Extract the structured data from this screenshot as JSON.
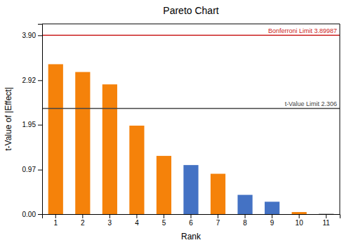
{
  "chart_data": {
    "type": "bar",
    "title": "Pareto Chart",
    "xlabel": "Rank",
    "ylabel": "t-Value of |Effect|",
    "categories": [
      1,
      2,
      3,
      4,
      5,
      6,
      7,
      8,
      9,
      10,
      11
    ],
    "values": [
      3.27,
      3.1,
      2.83,
      1.93,
      1.27,
      1.07,
      0.88,
      0.42,
      0.27,
      0.045,
      0.005
    ],
    "colors": [
      "#F5820A",
      "#F5820A",
      "#F5820A",
      "#F5820A",
      "#F5820A",
      "#4472C4",
      "#F5820A",
      "#4472C4",
      "#4472C4",
      "#F5820A",
      "#333333"
    ],
    "reference_lines": [
      {
        "value": 3.89987,
        "label": "Bonferroni Limit 3.89987",
        "color": "#CC2222"
      },
      {
        "value": 2.306,
        "label": "t-Value Limit 2.306",
        "color": "#444444"
      }
    ],
    "ylim": [
      0.0,
      4.15
    ],
    "yticks": [
      {
        "value": 0.0,
        "label": "0.00"
      },
      0.97,
      1.95,
      2.92,
      {
        "value": 3.9,
        "label": "3.90"
      }
    ],
    "grid": false
  }
}
